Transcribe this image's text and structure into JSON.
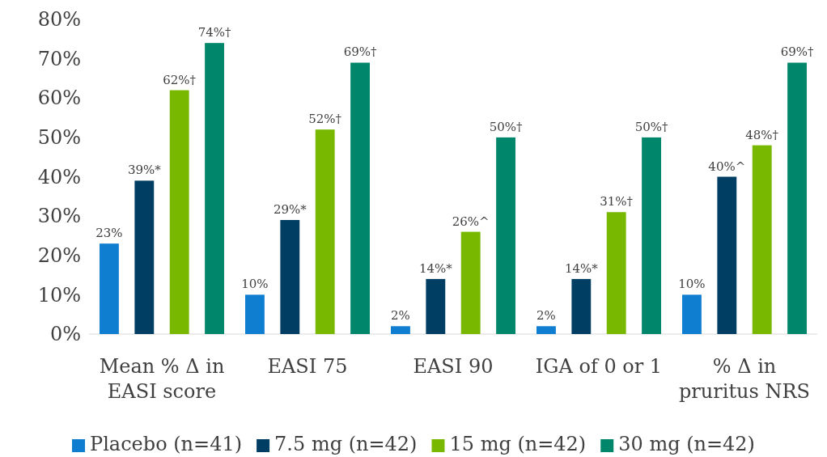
{
  "chart_data": {
    "type": "bar",
    "categories": [
      "Mean % Δ in EASI score",
      "EASI 75",
      "EASI 90",
      "IGA of 0 or 1",
      "% Δ in pruritus NRS"
    ],
    "series": [
      {
        "name": "Placebo (n=41)",
        "color": "#0f7dd0",
        "values": [
          23,
          10,
          2,
          2,
          10
        ],
        "value_labels": [
          "23%",
          "10%",
          "2%",
          "2%",
          "10%"
        ]
      },
      {
        "name": "7.5 mg (n=42)",
        "color": "#003f63",
        "values": [
          39,
          29,
          14,
          14,
          40
        ],
        "value_labels": [
          "39%*",
          "29%*",
          "14%*",
          "14%*",
          "40%^"
        ]
      },
      {
        "name": "15 mg (n=42)",
        "color": "#78b800",
        "values": [
          62,
          52,
          26,
          31,
          48
        ],
        "value_labels": [
          "62%†",
          "52%†",
          "26%^",
          "31%†",
          "48%†"
        ]
      },
      {
        "name": "30 mg (n=42)",
        "color": "#00876b",
        "values": [
          74,
          69,
          50,
          50,
          69
        ],
        "value_labels": [
          "74%†",
          "69%†",
          "50%†",
          "50%†",
          "69%†"
        ]
      }
    ],
    "ylim": [
      0,
      80
    ],
    "yticks": [
      {
        "value": 0,
        "label": "0%"
      },
      {
        "value": 10,
        "label": "10%"
      },
      {
        "value": 20,
        "label": "20%"
      },
      {
        "value": 30,
        "label": "30%"
      },
      {
        "value": 40,
        "label": "40%"
      },
      {
        "value": 50,
        "label": "50%"
      },
      {
        "value": 60,
        "label": "60%"
      },
      {
        "value": 70,
        "label": "70%"
      },
      {
        "value": 80,
        "label": "80%"
      }
    ],
    "grid": false,
    "legend": "bottom"
  }
}
